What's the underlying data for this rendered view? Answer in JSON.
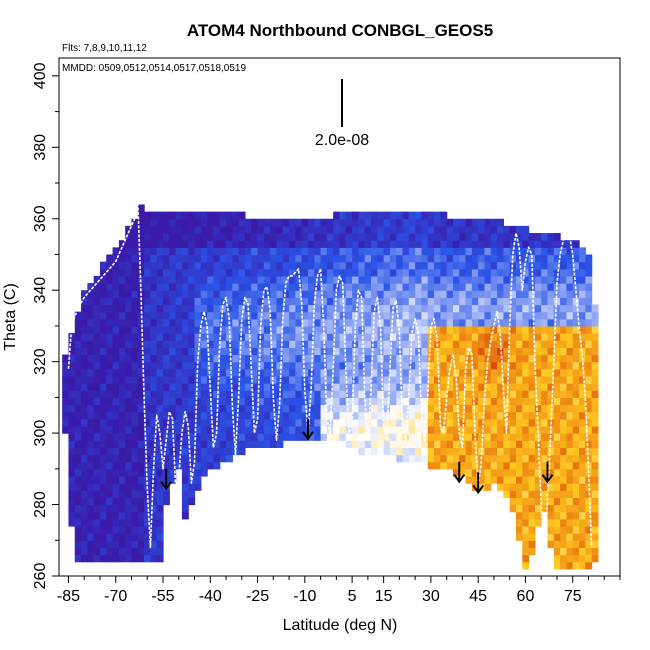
{
  "chart_data": {
    "type": "heatmap",
    "title": "ATOM4 Northbound CONBGL_GEOS5",
    "annotations": {
      "flights": "Flts: 7,8,9,10,11,12",
      "dates": "MMDD: 0509,0512,0514,0517,0518,0519",
      "scale_bar_label": "2.0e-08"
    },
    "xlabel": "Latitude (deg N)",
    "ylabel": "Theta (C)",
    "xlim": [
      -88,
      90
    ],
    "ylim": [
      260,
      405
    ],
    "x_ticks": [
      -85,
      -70,
      -55,
      -40,
      -25,
      -10,
      5,
      15,
      30,
      45,
      60,
      75
    ],
    "y_ticks": [
      260,
      280,
      300,
      320,
      340,
      360,
      380,
      400
    ],
    "grid": false,
    "arrow_latitudes": [
      -54,
      -9,
      39,
      45,
      67
    ],
    "color_scale": {
      "low": "#3a1aa8",
      "mid_low": "#2a55e8",
      "mid": "#ffffff",
      "mid_high": "#ffc820",
      "high": "#d02000"
    },
    "flight_track": [
      [
        -85,
        318
      ],
      [
        -84,
        330
      ],
      [
        -82,
        335
      ],
      [
        -80,
        338
      ],
      [
        -78,
        340
      ],
      [
        -76,
        342
      ],
      [
        -74,
        344
      ],
      [
        -72,
        346
      ],
      [
        -70,
        348
      ],
      [
        -68,
        352
      ],
      [
        -66,
        356
      ],
      [
        -64,
        360
      ],
      [
        -63,
        365
      ],
      [
        -62,
        340
      ],
      [
        -61,
        310
      ],
      [
        -60,
        285
      ],
      [
        -59,
        268
      ],
      [
        -58,
        290
      ],
      [
        -57,
        305
      ],
      [
        -56,
        300
      ],
      [
        -55,
        290
      ],
      [
        -54,
        298
      ],
      [
        -53,
        306
      ],
      [
        -52,
        304
      ],
      [
        -51,
        285
      ],
      [
        -50,
        288
      ],
      [
        -49,
        300
      ],
      [
        -48,
        306
      ],
      [
        -47,
        302
      ],
      [
        -46,
        286
      ],
      [
        -45,
        292
      ],
      [
        -44,
        320
      ],
      [
        -43,
        330
      ],
      [
        -42,
        334
      ],
      [
        -41,
        330
      ],
      [
        -40,
        312
      ],
      [
        -39,
        296
      ],
      [
        -38,
        300
      ],
      [
        -37,
        325
      ],
      [
        -36,
        336
      ],
      [
        -35,
        338
      ],
      [
        -34,
        332
      ],
      [
        -33,
        308
      ],
      [
        -32,
        294
      ],
      [
        -31,
        310
      ],
      [
        -30,
        332
      ],
      [
        -29,
        338
      ],
      [
        -28,
        336
      ],
      [
        -27,
        318
      ],
      [
        -26,
        300
      ],
      [
        -25,
        304
      ],
      [
        -24,
        330
      ],
      [
        -23,
        340
      ],
      [
        -22,
        341
      ],
      [
        -21,
        334
      ],
      [
        -20,
        310
      ],
      [
        -19,
        298
      ],
      [
        -18,
        308
      ],
      [
        -17,
        332
      ],
      [
        -16,
        342
      ],
      [
        -15,
        344
      ],
      [
        -14,
        344
      ],
      [
        -13,
        345
      ],
      [
        -12,
        346
      ],
      [
        -11,
        336
      ],
      [
        -10,
        312
      ],
      [
        -9,
        300
      ],
      [
        -8,
        312
      ],
      [
        -7,
        336
      ],
      [
        -6,
        344
      ],
      [
        -5,
        346
      ],
      [
        -4,
        330
      ],
      [
        -3,
        304
      ],
      [
        -2,
        300
      ],
      [
        -1,
        318
      ],
      [
        0,
        340
      ],
      [
        1,
        344
      ],
      [
        2,
        342
      ],
      [
        3,
        318
      ],
      [
        4,
        300
      ],
      [
        5,
        302
      ],
      [
        6,
        330
      ],
      [
        7,
        340
      ],
      [
        8,
        338
      ],
      [
        9,
        310
      ],
      [
        10,
        298
      ],
      [
        11,
        312
      ],
      [
        12,
        334
      ],
      [
        13,
        338
      ],
      [
        14,
        330
      ],
      [
        15,
        302
      ],
      [
        16,
        298
      ],
      [
        17,
        318
      ],
      [
        18,
        335
      ],
      [
        19,
        337
      ],
      [
        20,
        328
      ],
      [
        21,
        302
      ],
      [
        22,
        298
      ],
      [
        23,
        310
      ],
      [
        24,
        328
      ],
      [
        25,
        332
      ],
      [
        26,
        328
      ],
      [
        27,
        306
      ],
      [
        28,
        298
      ],
      [
        29,
        310
      ],
      [
        30,
        330
      ],
      [
        31,
        332
      ],
      [
        32,
        326
      ],
      [
        33,
        302
      ],
      [
        34,
        300
      ],
      [
        35,
        310
      ],
      [
        36,
        318
      ],
      [
        37,
        322
      ],
      [
        38,
        316
      ],
      [
        39,
        300
      ],
      [
        40,
        296
      ],
      [
        41,
        318
      ],
      [
        42,
        324
      ],
      [
        43,
        322
      ],
      [
        44,
        300
      ],
      [
        45,
        285
      ],
      [
        46,
        292
      ],
      [
        47,
        310
      ],
      [
        48,
        320
      ],
      [
        49,
        326
      ],
      [
        50,
        330
      ],
      [
        51,
        334
      ],
      [
        52,
        328
      ],
      [
        53,
        312
      ],
      [
        54,
        300
      ],
      [
        55,
        330
      ],
      [
        56,
        350
      ],
      [
        57,
        356
      ],
      [
        58,
        352
      ],
      [
        59,
        340
      ],
      [
        60,
        348
      ],
      [
        61,
        352
      ],
      [
        62,
        350
      ],
      [
        63,
        320
      ],
      [
        64,
        300
      ],
      [
        65,
        280
      ],
      [
        66,
        262
      ],
      [
        67,
        282
      ],
      [
        68,
        300
      ],
      [
        69,
        320
      ],
      [
        70,
        342
      ],
      [
        71,
        350
      ],
      [
        72,
        354
      ],
      [
        73,
        356
      ],
      [
        74,
        355
      ],
      [
        75,
        350
      ],
      [
        76,
        340
      ],
      [
        77,
        330
      ],
      [
        78,
        322
      ],
      [
        79,
        310
      ],
      [
        80,
        290
      ],
      [
        81,
        268
      ]
    ]
  }
}
